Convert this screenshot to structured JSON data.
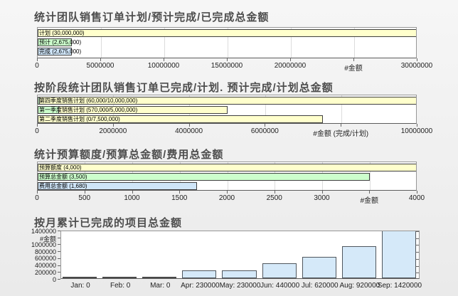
{
  "page": {
    "background_top": "#f6f6f6",
    "background_bottom": "#eaeaea",
    "accent_yellow": "#ffffcc",
    "accent_green": "#ccffcc",
    "accent_blue": "#cfe5f8"
  },
  "chart_data": [
    {
      "type": "bar",
      "orientation": "horizontal",
      "title": "统计团队销售订单计划/预计完成/已完成总金额",
      "xlim": [
        0,
        30000000
      ],
      "grid": true,
      "axis_label": "#金额",
      "xticks": [
        "0",
        "5000000",
        "10000000",
        "15000000",
        "20000000",
        "#金额",
        "30000000"
      ],
      "bars": [
        {
          "name": "计划",
          "value": 30000000,
          "label": "计划 (30,000,000)",
          "color": "#ffffcc"
        },
        {
          "name": "预计",
          "value": 2675000,
          "label": "预计 (2,675,000)",
          "color": "#ccffcc"
        },
        {
          "name": "完成",
          "value": 2675000,
          "label": "完成 (2,675,000)",
          "color": "#cfe5f8"
        }
      ]
    },
    {
      "type": "bar",
      "orientation": "horizontal",
      "title": "按阶段统计团队销售订单已完成/计划. 预计完成/计划总金额",
      "xlim": [
        0,
        10000000
      ],
      "grid": true,
      "axis_label": "#金额 (完成/计划)",
      "xticks": [
        "0",
        "2000000",
        "4000000",
        "6000000",
        "#金额 (完成/计划)",
        "10000000"
      ],
      "bars": [
        {
          "name": "第四季度销售计划",
          "value": 10000000,
          "value2": 60000,
          "label": "第四季度销售计划 (60,000/10,000,000)",
          "color": "#ffffcc",
          "color2": "#ccffcc"
        },
        {
          "name": "第一季度销售计划",
          "value": 5000000,
          "value2": 570000,
          "label": "第一季度销售计划 (570,000/5,000,000)",
          "color": "#ffffcc",
          "color2": "#ccffcc"
        },
        {
          "name": "第二季度销售计划",
          "value": 7500000,
          "value2": 0,
          "label": "第二季度销售计划 (0/7,500,000)",
          "color": "#ffffcc",
          "color2": "#ccffcc"
        }
      ]
    },
    {
      "type": "bar",
      "orientation": "horizontal",
      "title": "统计预算额度/预算总金额/费用总金额",
      "xlim": [
        0,
        4000
      ],
      "grid": true,
      "axis_label": "#金额",
      "xticks": [
        "0",
        "500",
        "1000",
        "1500",
        "2000",
        "2500",
        "3000",
        "#金额",
        "4000"
      ],
      "bars": [
        {
          "name": "预算额度",
          "value": 4000,
          "label": "预算额度 (4,000)",
          "color": "#ffffcc"
        },
        {
          "name": "预算总金额",
          "value": 3500,
          "label": "预算总金额 (3,500)",
          "color": "#ccffcc"
        },
        {
          "name": "费用总金额",
          "value": 1680,
          "label": "费用总金额 (1,680)",
          "color": "#cfe5f8"
        }
      ]
    },
    {
      "type": "bar",
      "orientation": "vertical",
      "title": "按月累计已完成的项目总金额",
      "ylim": [
        0,
        1400000
      ],
      "grid": false,
      "axis_label": "#金额",
      "yticks": [
        "1400000",
        "#金额",
        "1000000",
        "800000",
        "600000",
        "400000",
        "200000",
        "0"
      ],
      "ytick_values": [
        1400000,
        1200000,
        1000000,
        800000,
        600000,
        400000,
        200000,
        0
      ],
      "categories": [
        "Jan",
        "Feb",
        "Mar",
        "Apr",
        "May",
        "Jun",
        "Jul",
        "Aug",
        "Sep"
      ],
      "values": [
        0,
        0,
        0,
        230000,
        230000,
        440000,
        620000,
        920000,
        1420000
      ],
      "xlabels": [
        "Jan: 0",
        "Feb: 0",
        "Mar: 0",
        "Apr: 230000",
        "May: 230000",
        "Jun: 440000",
        "Jul: 620000",
        "Aug: 920000",
        "Sep: 1420000"
      ],
      "bar_color": "#d5e9f9",
      "zero_bar_color": "#4a4a4a"
    }
  ]
}
